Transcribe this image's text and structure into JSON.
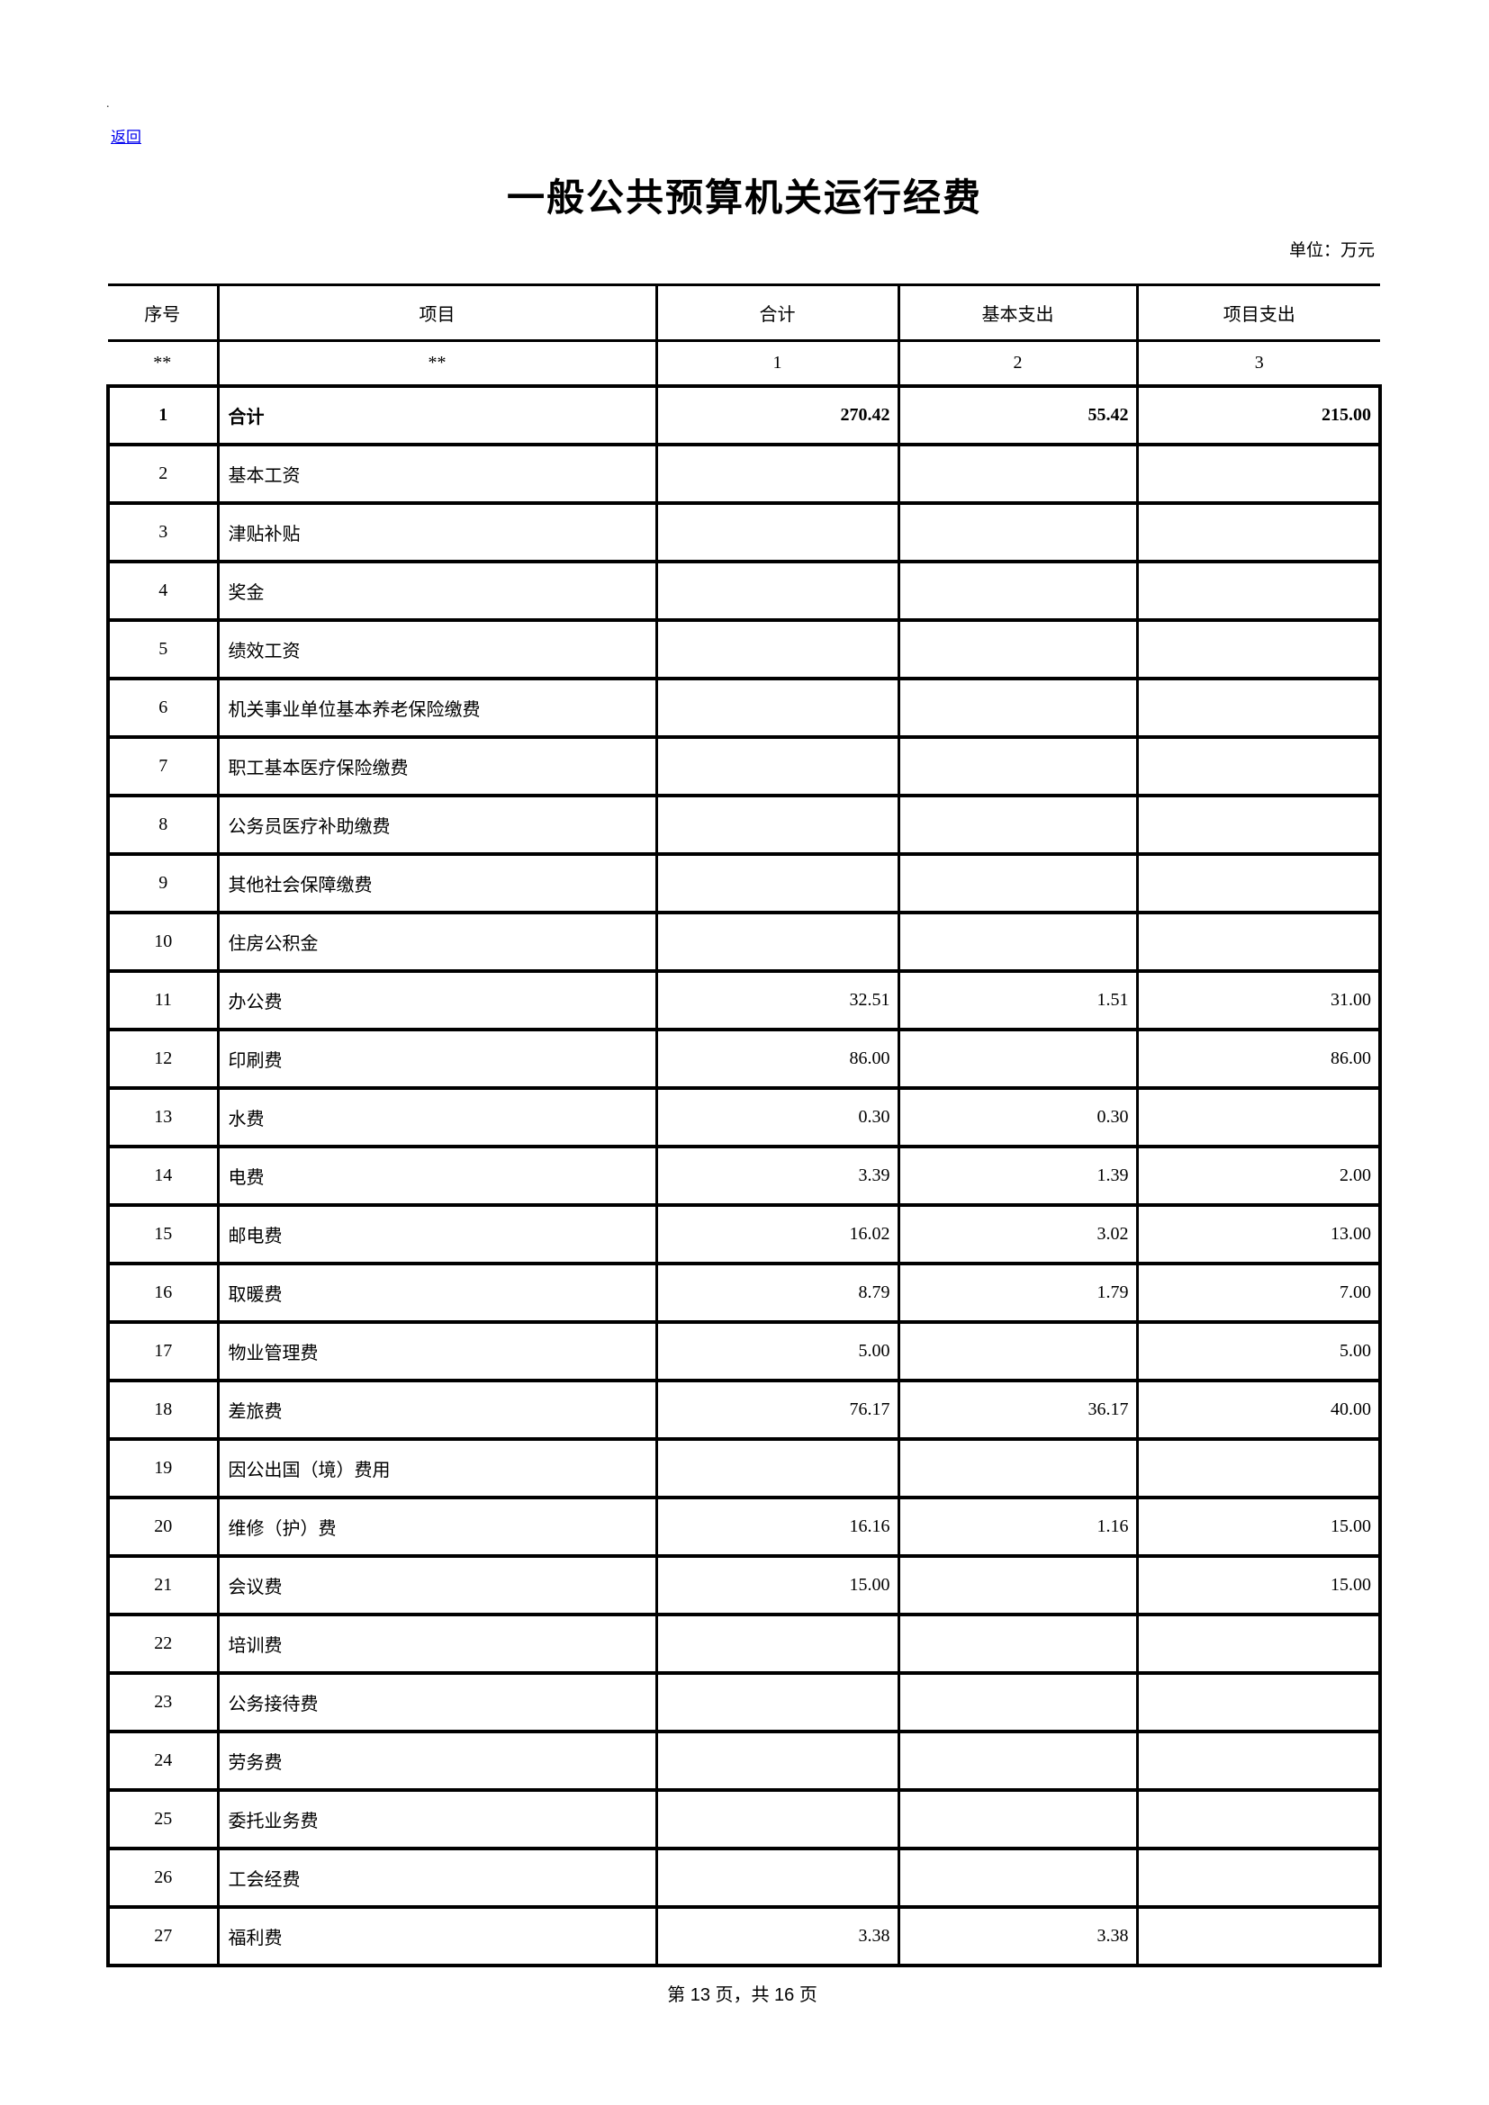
{
  "page": {
    "back_link": "返回",
    "title": "一般公共预算机关运行经费",
    "unit_label": "单位：万元",
    "footer": "第 13 页，共 16 页",
    "link_color": "#0000ee",
    "text_color": "#000000",
    "background_color": "#ffffff"
  },
  "table": {
    "header": [
      "序号",
      "项目",
      "合计",
      "基本支出",
      "项目支出"
    ],
    "code_row": [
      "**",
      "**",
      "1",
      "2",
      "3"
    ],
    "rows": [
      {
        "no": "1",
        "item": "合计",
        "total": "270.42",
        "basic": "55.42",
        "project": "215.00",
        "bold": true
      },
      {
        "no": "2",
        "item": "基本工资",
        "total": "",
        "basic": "",
        "project": "",
        "bold": false
      },
      {
        "no": "3",
        "item": "津贴补贴",
        "total": "",
        "basic": "",
        "project": "",
        "bold": false
      },
      {
        "no": "4",
        "item": "奖金",
        "total": "",
        "basic": "",
        "project": "",
        "bold": false
      },
      {
        "no": "5",
        "item": "绩效工资",
        "total": "",
        "basic": "",
        "project": "",
        "bold": false
      },
      {
        "no": "6",
        "item": "机关事业单位基本养老保险缴费",
        "total": "",
        "basic": "",
        "project": "",
        "bold": false
      },
      {
        "no": "7",
        "item": "职工基本医疗保险缴费",
        "total": "",
        "basic": "",
        "project": "",
        "bold": false
      },
      {
        "no": "8",
        "item": "公务员医疗补助缴费",
        "total": "",
        "basic": "",
        "project": "",
        "bold": false
      },
      {
        "no": "9",
        "item": "其他社会保障缴费",
        "total": "",
        "basic": "",
        "project": "",
        "bold": false
      },
      {
        "no": "10",
        "item": "住房公积金",
        "total": "",
        "basic": "",
        "project": "",
        "bold": false
      },
      {
        "no": "11",
        "item": "办公费",
        "total": "32.51",
        "basic": "1.51",
        "project": "31.00",
        "bold": false
      },
      {
        "no": "12",
        "item": "印刷费",
        "total": "86.00",
        "basic": "",
        "project": "86.00",
        "bold": false
      },
      {
        "no": "13",
        "item": "水费",
        "total": "0.30",
        "basic": "0.30",
        "project": "",
        "bold": false
      },
      {
        "no": "14",
        "item": "电费",
        "total": "3.39",
        "basic": "1.39",
        "project": "2.00",
        "bold": false
      },
      {
        "no": "15",
        "item": "邮电费",
        "total": "16.02",
        "basic": "3.02",
        "project": "13.00",
        "bold": false
      },
      {
        "no": "16",
        "item": "取暖费",
        "total": "8.79",
        "basic": "1.79",
        "project": "7.00",
        "bold": false
      },
      {
        "no": "17",
        "item": "物业管理费",
        "total": "5.00",
        "basic": "",
        "project": "5.00",
        "bold": false
      },
      {
        "no": "18",
        "item": "差旅费",
        "total": "76.17",
        "basic": "36.17",
        "project": "40.00",
        "bold": false
      },
      {
        "no": "19",
        "item": "因公出国（境）费用",
        "total": "",
        "basic": "",
        "project": "",
        "bold": false
      },
      {
        "no": "20",
        "item": "维修（护）费",
        "total": "16.16",
        "basic": "1.16",
        "project": "15.00",
        "bold": false
      },
      {
        "no": "21",
        "item": "会议费",
        "total": "15.00",
        "basic": "",
        "project": "15.00",
        "bold": false
      },
      {
        "no": "22",
        "item": "培训费",
        "total": "",
        "basic": "",
        "project": "",
        "bold": false
      },
      {
        "no": "23",
        "item": "公务接待费",
        "total": "",
        "basic": "",
        "project": "",
        "bold": false
      },
      {
        "no": "24",
        "item": "劳务费",
        "total": "",
        "basic": "",
        "project": "",
        "bold": false
      },
      {
        "no": "25",
        "item": "委托业务费",
        "total": "",
        "basic": "",
        "project": "",
        "bold": false
      },
      {
        "no": "26",
        "item": "工会经费",
        "total": "",
        "basic": "",
        "project": "",
        "bold": false
      },
      {
        "no": "27",
        "item": "福利费",
        "total": "3.38",
        "basic": "3.38",
        "project": "",
        "bold": false
      }
    ]
  }
}
